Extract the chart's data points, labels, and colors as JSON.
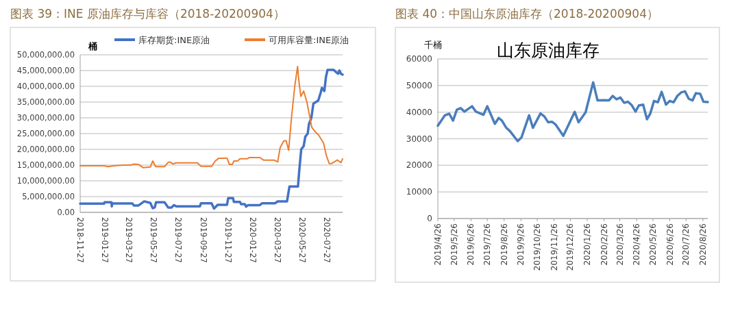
{
  "chart_data": [
    {
      "type": "line",
      "title": "图表 39：INE 原油库存与库容（2018-20200904）",
      "ylabel": "桶",
      "grid": "y",
      "legend": "top",
      "xlim": [
        "2018-11-27",
        "2020-09-04"
      ],
      "xticks": [
        {
          "value": "2018-11-27",
          "label": "2018-11-27"
        },
        {
          "value": "2019-01-27",
          "label": "2019-01-27"
        },
        {
          "value": "2019-03-27",
          "label": "2019-03-27"
        },
        {
          "value": "2019-05-27",
          "label": "2019-05-27"
        },
        {
          "value": "2019-07-27",
          "label": "2019-07-27"
        },
        {
          "value": "2019-09-27",
          "label": "2019-09-27"
        },
        {
          "value": "2019-11-27",
          "label": "2019-11-27"
        },
        {
          "value": "2020-01-27",
          "label": "2020-01-27"
        },
        {
          "value": "2020-03-27",
          "label": "2020-03-27"
        },
        {
          "value": "2020-05-27",
          "label": "2020-05-27"
        },
        {
          "value": "2020-07-27",
          "label": "2020-07-27"
        }
      ],
      "ylim": [
        0,
        50000000
      ],
      "yticks": [
        {
          "value": 0,
          "label": "0.00"
        },
        {
          "value": 5000000,
          "label": "5,000,000.00"
        },
        {
          "value": 10000000,
          "label": "10,000,000.00"
        },
        {
          "value": 15000000,
          "label": "15,000,000.00"
        },
        {
          "value": 20000000,
          "label": "20,000,000.00"
        },
        {
          "value": 25000000,
          "label": "25,000,000.00"
        },
        {
          "value": 30000000,
          "label": "30,000,000.00"
        },
        {
          "value": 35000000,
          "label": "35,000,000.00"
        },
        {
          "value": 40000000,
          "label": "40,000,000.00"
        },
        {
          "value": 45000000,
          "label": "45,000,000.00"
        },
        {
          "value": 50000000,
          "label": "50,000,000.00"
        }
      ],
      "series": [
        {
          "name": "库存期货:INE原油",
          "color": "#4472c4",
          "x": [
            "2018-11-27",
            "2019-01-25",
            "2019-01-26",
            "2019-02-12",
            "2019-02-13",
            "2019-02-14",
            "2019-04-05",
            "2019-04-08",
            "2019-04-20",
            "2019-05-04",
            "2019-05-19",
            "2019-05-25",
            "2019-05-30",
            "2019-06-02",
            "2019-06-23",
            "2019-07-02",
            "2019-07-10",
            "2019-07-16",
            "2019-07-22",
            "2019-09-18",
            "2019-09-21",
            "2019-10-17",
            "2019-10-23",
            "2019-11-01",
            "2019-11-24",
            "2019-11-27",
            "2019-12-09",
            "2019-12-11",
            "2019-12-26",
            "2019-12-29",
            "2020-01-07",
            "2020-01-10",
            "2020-01-15",
            "2020-02-13",
            "2020-02-19",
            "2020-03-22",
            "2020-03-28",
            "2020-04-20",
            "2020-04-26",
            "2020-05-17",
            "2020-05-20",
            "2020-05-25",
            "2020-05-31",
            "2020-06-04",
            "2020-06-10",
            "2020-06-13",
            "2020-06-19",
            "2020-06-24",
            "2020-07-06",
            "2020-07-12",
            "2020-07-15",
            "2020-07-21",
            "2020-07-25",
            "2020-07-29",
            "2020-08-13",
            "2020-08-19",
            "2020-08-24",
            "2020-08-27",
            "2020-08-31",
            "2020-09-04"
          ],
          "values": [
            2750000,
            2750000,
            3200000,
            3200000,
            1900000,
            2800000,
            2800000,
            2200000,
            2200000,
            3500000,
            3000000,
            1300000,
            1600000,
            3200000,
            3200000,
            1500000,
            1500000,
            2300000,
            1900000,
            1900000,
            2900000,
            2900000,
            1200000,
            2400000,
            2400000,
            4500000,
            4500000,
            3300000,
            3300000,
            2600000,
            2600000,
            1800000,
            2300000,
            2300000,
            2900000,
            2900000,
            3500000,
            3500000,
            8200000,
            8200000,
            13000000,
            20000000,
            21000000,
            24000000,
            25000000,
            28000000,
            30000000,
            34500000,
            35500000,
            38000000,
            39500000,
            38500000,
            43000000,
            45200000,
            45200000,
            44500000,
            44000000,
            45000000,
            44000000,
            43700000
          ]
        },
        {
          "name": "可用库容量:INE原油",
          "color": "#ed7d31",
          "x": [
            "2018-11-27",
            "2019-01-25",
            "2019-02-03",
            "2019-02-18",
            "2019-03-13",
            "2019-03-31",
            "2019-04-08",
            "2019-04-20",
            "2019-05-01",
            "2019-05-19",
            "2019-05-25",
            "2019-06-01",
            "2019-06-23",
            "2019-07-02",
            "2019-07-08",
            "2019-07-13",
            "2019-07-22",
            "2019-09-12",
            "2019-09-21",
            "2019-10-17",
            "2019-10-26",
            "2019-11-04",
            "2019-11-24",
            "2019-11-30",
            "2019-12-07",
            "2019-12-11",
            "2019-12-20",
            "2019-12-26",
            "2020-01-13",
            "2020-01-18",
            "2020-02-13",
            "2020-02-22",
            "2020-03-19",
            "2020-03-28",
            "2020-04-03",
            "2020-04-12",
            "2020-04-18",
            "2020-04-24",
            "2020-05-01",
            "2020-05-09",
            "2020-05-16",
            "2020-05-19",
            "2020-05-24",
            "2020-05-31",
            "2020-06-08",
            "2020-06-14",
            "2020-06-20",
            "2020-06-29",
            "2020-07-07",
            "2020-07-19",
            "2020-07-26",
            "2020-08-02",
            "2020-08-08",
            "2020-08-22",
            "2020-08-31",
            "2020-09-04"
          ],
          "values": [
            14800000,
            14800000,
            14500000,
            14800000,
            15000000,
            15000000,
            15300000,
            15200000,
            14200000,
            14400000,
            16300000,
            14500000,
            14500000,
            15900000,
            15900000,
            15400000,
            15700000,
            15700000,
            14600000,
            14600000,
            16300000,
            17200000,
            17200000,
            15200000,
            15200000,
            16300000,
            16300000,
            17000000,
            17000000,
            17400000,
            17400000,
            16600000,
            16600000,
            16000000,
            20500000,
            22700000,
            22700000,
            19700000,
            30000000,
            40000000,
            46300000,
            42000000,
            36800000,
            38500000,
            35000000,
            31000000,
            27000000,
            25500000,
            24500000,
            22000000,
            18000000,
            15500000,
            15500000,
            16600000,
            15800000,
            17000000
          ]
        }
      ]
    },
    {
      "type": "line",
      "title": "图表 40：中国山东原油库存（2018-20200904）",
      "subtitle": "山东原油库存",
      "ylabel": "千桶",
      "grid": "y",
      "xlim": [
        "2019-04-26",
        "2020-09-04"
      ],
      "xticks": [
        {
          "value": "2019-04-26",
          "label": "2019/4/26"
        },
        {
          "value": "2019-05-26",
          "label": "2019/5/26"
        },
        {
          "value": "2019-06-26",
          "label": "2019/6/26"
        },
        {
          "value": "2019-07-26",
          "label": "2019/7/26"
        },
        {
          "value": "2019-08-26",
          "label": "2019/8/26"
        },
        {
          "value": "2019-09-26",
          "label": "2019/9/26"
        },
        {
          "value": "2019-10-26",
          "label": "2019/10/26"
        },
        {
          "value": "2019-11-26",
          "label": "2019/11/26"
        },
        {
          "value": "2019-12-26",
          "label": "2019/12/26"
        },
        {
          "value": "2020-01-26",
          "label": "2020/1/26"
        },
        {
          "value": "2020-02-26",
          "label": "2020/2/26"
        },
        {
          "value": "2020-03-26",
          "label": "2020/3/26"
        },
        {
          "value": "2020-04-26",
          "label": "2020/4/26"
        },
        {
          "value": "2020-05-26",
          "label": "2020/5/26"
        },
        {
          "value": "2020-06-26",
          "label": "2020/6/26"
        },
        {
          "value": "2020-07-26",
          "label": "2020/7/26"
        },
        {
          "value": "2020-08-26",
          "label": "2020/8/26"
        }
      ],
      "ylim": [
        0,
        60000
      ],
      "yticks": [
        0,
        10000,
        20000,
        30000,
        40000,
        50000,
        60000
      ],
      "series": [
        {
          "color": "#4a7ebb",
          "x": [
            "2019-04-26",
            "2019-05-09",
            "2019-05-17",
            "2019-05-24",
            "2019-05-31",
            "2019-06-07",
            "2019-06-14",
            "2019-06-28",
            "2019-07-05",
            "2019-07-19",
            "2019-07-26",
            "2019-08-09",
            "2019-08-16",
            "2019-08-22",
            "2019-08-30",
            "2019-09-06",
            "2019-09-20",
            "2019-09-27",
            "2019-10-11",
            "2019-10-18",
            "2019-11-01",
            "2019-11-08",
            "2019-11-15",
            "2019-11-22",
            "2019-11-29",
            "2019-12-13",
            "2020-01-03",
            "2020-01-10",
            "2020-01-23",
            "2020-02-06",
            "2020-02-14",
            "2020-02-27",
            "2020-03-06",
            "2020-03-13",
            "2020-03-20",
            "2020-03-27",
            "2020-04-03",
            "2020-04-10",
            "2020-04-17",
            "2020-04-24",
            "2020-04-30",
            "2020-05-08",
            "2020-05-15",
            "2020-05-21",
            "2020-05-28",
            "2020-06-04",
            "2020-06-11",
            "2020-06-19",
            "2020-06-26",
            "2020-07-03",
            "2020-07-10",
            "2020-07-17",
            "2020-07-24",
            "2020-07-31",
            "2020-08-07",
            "2020-08-13",
            "2020-08-21",
            "2020-08-27",
            "2020-09-04"
          ],
          "values": [
            34900,
            38800,
            39400,
            36800,
            40900,
            41500,
            40200,
            42200,
            40200,
            39000,
            42200,
            35600,
            37800,
            36800,
            34100,
            32800,
            29100,
            30500,
            38800,
            34100,
            39500,
            38400,
            36200,
            36400,
            35300,
            31100,
            40100,
            36200,
            39900,
            51200,
            44400,
            44500,
            44400,
            46100,
            44800,
            45500,
            43500,
            43900,
            42600,
            40200,
            42500,
            42800,
            37300,
            39400,
            44200,
            43700,
            47600,
            42800,
            44200,
            43700,
            46100,
            47400,
            47800,
            45000,
            44400,
            47100,
            46900,
            43900,
            43800
          ]
        }
      ]
    }
  ]
}
